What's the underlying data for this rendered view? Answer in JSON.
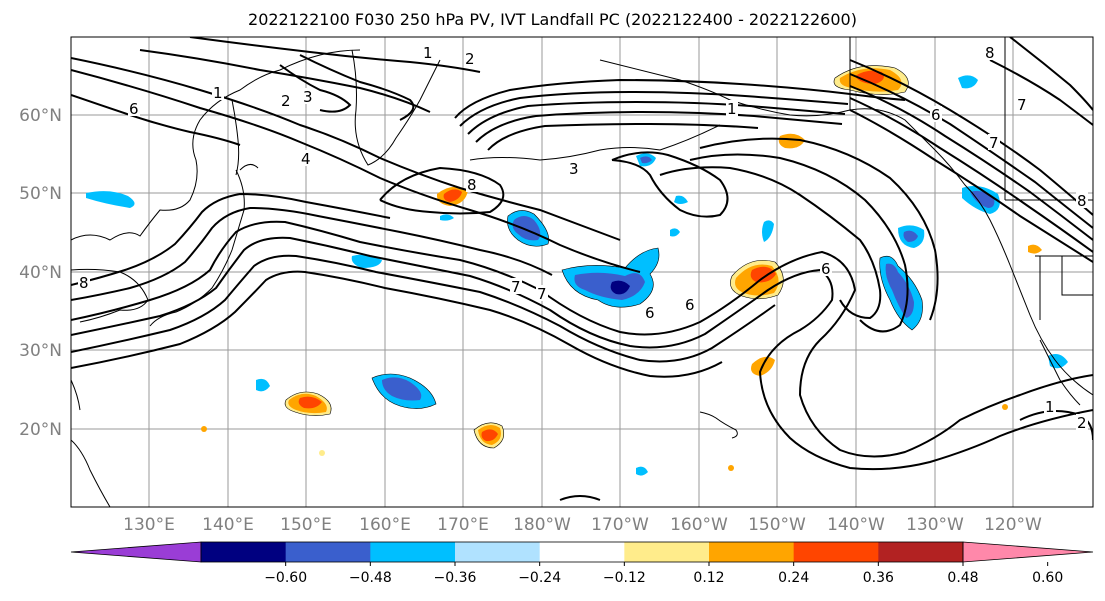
{
  "title": "2022122100 F030 250 hPa PV, IVT Landfall PC (2022122400 - 2022122600)",
  "lat_labels": [
    "60°N",
    "50°N",
    "40°N",
    "30°N",
    "20°N"
  ],
  "lon_labels": [
    "130°E",
    "140°E",
    "150°E",
    "160°E",
    "170°E",
    "180°W",
    "170°W",
    "160°W",
    "150°W",
    "140°W",
    "130°W",
    "120°W"
  ],
  "colorbar": {
    "colors": [
      "#9a3dd6",
      "#000080",
      "#3a5fcd",
      "#00bfff",
      "#b0e2ff",
      "#ffffff",
      "#ffec8b",
      "#ffa500",
      "#ff4500",
      "#b22222",
      "#ff88aa"
    ],
    "tick_labels": [
      "−0.60",
      "−0.48",
      "−0.36",
      "−0.24",
      "−0.12",
      "0.12",
      "0.24",
      "0.36",
      "0.48",
      "0.60"
    ]
  },
  "contour_labels": [
    "1",
    "2",
    "3",
    "4",
    "6",
    "7",
    "8",
    "1",
    "2",
    "3",
    "6",
    "7",
    "8",
    "6",
    "7",
    "6",
    "1",
    "1",
    "2",
    "8",
    "6",
    "7",
    "8"
  ]
}
